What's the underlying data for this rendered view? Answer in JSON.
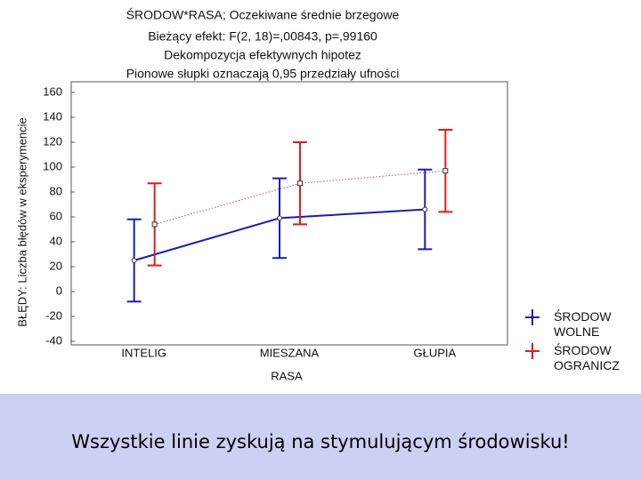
{
  "chart_data": {
    "type": "errorbar-line",
    "title": "ŚRODOW*RASA; Oczekiwane średnie brzegowe",
    "subtitles": [
      "Bieżący efekt: F(2, 18)=,00843, p=,99160",
      "Dekompozycja efektywnych hipotez",
      "Pionowe słupki oznaczają 0,95 przedziały ufności"
    ],
    "x_label": "RASA",
    "y_label": "BŁĘDY: Liczba błędów w eksperymencie",
    "categories": [
      "INTELIG",
      "MIESZANA",
      "GŁUPIA"
    ],
    "series": [
      {
        "name": "ŚRODOW WOLNE",
        "color": "#1c1cb0",
        "values": [
          25,
          59,
          66
        ],
        "errors": [
          33,
          32,
          32
        ],
        "line": "solid"
      },
      {
        "name": "ŚRODOW OGRANICZ",
        "color": "#e01c1c",
        "values": [
          54,
          87,
          97
        ],
        "errors": [
          33,
          33,
          33
        ],
        "line": "dotted"
      }
    ],
    "ylim": [
      -40,
      160
    ],
    "yticks": [
      -40,
      -20,
      0,
      20,
      40,
      60,
      80,
      100,
      120,
      140,
      160
    ],
    "grid": false
  },
  "caption": "Wszystkie linie zyskują na stymulującym środowisku!"
}
